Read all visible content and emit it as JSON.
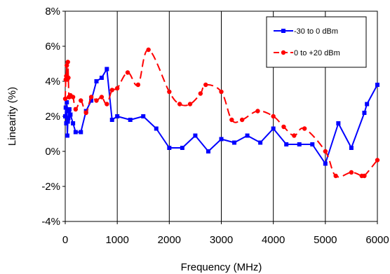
{
  "chart_data": {
    "type": "line",
    "xlabel": "Frequency (MHz)",
    "ylabel": "Linearity (%)",
    "xlim": [
      0,
      6000
    ],
    "ylim": [
      -4,
      8
    ],
    "xticks": [
      "0",
      "1000",
      "2000",
      "3000",
      "4000",
      "5000",
      "6000"
    ],
    "yticks": [
      "8%",
      "6%",
      "4%",
      "2%",
      "0%",
      "-2%",
      "-4%"
    ],
    "xtick_values": [
      0,
      1000,
      2000,
      3000,
      4000,
      5000,
      6000
    ],
    "ytick_values": [
      8,
      6,
      4,
      2,
      0,
      -2,
      -4
    ],
    "grid": "vertical",
    "legend_position": "top-right",
    "series": [
      {
        "name": "-30 to 0 dBm",
        "color": "#0000ff",
        "line_style": "solid",
        "marker": "square",
        "x": [
          0,
          10,
          20,
          30,
          40,
          50,
          60,
          70,
          80,
          100,
          150,
          200,
          300,
          400,
          500,
          600,
          700,
          800,
          900,
          1000,
          1250,
          1500,
          1750,
          2000,
          2250,
          2500,
          2750,
          3000,
          3250,
          3500,
          3750,
          4000,
          4250,
          4500,
          4750,
          5000,
          5250,
          5500,
          5750,
          5800,
          6000
        ],
        "y": [
          2.0,
          2.5,
          1.6,
          2.8,
          0.9,
          1.7,
          1.9,
          2.3,
          2.4,
          2.1,
          1.6,
          1.1,
          1.1,
          2.3,
          2.9,
          4.0,
          4.2,
          4.7,
          1.8,
          2.0,
          1.8,
          2.0,
          1.3,
          0.2,
          0.2,
          0.9,
          0.0,
          0.7,
          0.5,
          0.9,
          0.5,
          1.3,
          0.4,
          0.4,
          0.4,
          -0.7,
          1.6,
          0.2,
          2.2,
          2.7,
          3.8
        ]
      },
      {
        "name": "0 to +20 dBm",
        "color": "#ff0000",
        "line_style": "dashed",
        "marker": "circle",
        "x": [
          0,
          10,
          20,
          30,
          40,
          50,
          60,
          70,
          80,
          100,
          150,
          200,
          300,
          400,
          500,
          600,
          700,
          800,
          900,
          1000,
          1200,
          1400,
          1600,
          2000,
          2200,
          2400,
          2600,
          2700,
          3000,
          3200,
          3400,
          3700,
          4000,
          4200,
          4400,
          4600,
          5000,
          5200,
          5500,
          5700,
          5750,
          6000
        ],
        "y": [
          3.0,
          4.1,
          4.3,
          4.9,
          4.1,
          5.1,
          4.2,
          3.1,
          3.1,
          3.2,
          3.1,
          2.4,
          2.9,
          2.2,
          3.1,
          2.9,
          3.1,
          2.7,
          3.5,
          3.6,
          4.5,
          3.8,
          5.8,
          3.4,
          2.7,
          2.7,
          3.3,
          3.8,
          3.4,
          1.8,
          1.8,
          2.3,
          2.0,
          1.4,
          0.9,
          1.3,
          0.0,
          -1.4,
          -1.2,
          -1.4,
          -1.4,
          -0.5
        ]
      }
    ]
  }
}
